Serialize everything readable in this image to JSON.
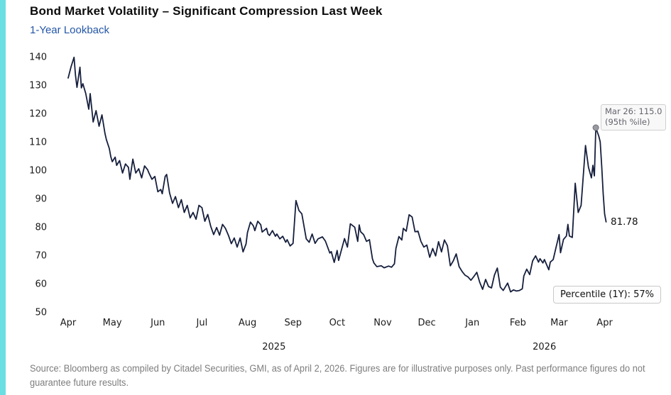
{
  "accent_color": "#6adfe3",
  "header": {
    "title": "Bond Market Volatility – Significant Compression Last Week",
    "subtitle": "1-Year Lookback"
  },
  "footer": {
    "source": "Source: Bloomberg as compiled by Citadel Securities, GMI, as of April 2, 2026. Figures are for illustrative purposes only. Past performance figures do not guarantee future results."
  },
  "chart_data": {
    "type": "line",
    "title": "Bond Market Volatility – Significant Compression Last Week",
    "subtitle": "1-Year Lookback",
    "x_start_date": "2025-04-01",
    "x_end_date": "2026-04-02",
    "x_unit": "days since 2025-04-01",
    "ylim": [
      50,
      140
    ],
    "y_ticks": [
      50,
      60,
      70,
      80,
      90,
      100,
      110,
      120,
      130,
      140
    ],
    "x_ticks": [
      {
        "day": 0,
        "label": "Apr"
      },
      {
        "day": 30,
        "label": "May"
      },
      {
        "day": 61,
        "label": "Jun"
      },
      {
        "day": 91,
        "label": "Jul"
      },
      {
        "day": 122,
        "label": "Aug"
      },
      {
        "day": 153,
        "label": "Sep"
      },
      {
        "day": 183,
        "label": "Oct"
      },
      {
        "day": 214,
        "label": "Nov"
      },
      {
        "day": 244,
        "label": "Dec"
      },
      {
        "day": 275,
        "label": "Jan"
      },
      {
        "day": 306,
        "label": "Feb"
      },
      {
        "day": 334,
        "label": "Mar"
      },
      {
        "day": 365,
        "label": "Apr"
      }
    ],
    "year_labels": [
      {
        "day": 140,
        "label": "2025"
      },
      {
        "day": 324,
        "label": "2026"
      }
    ],
    "grid": false,
    "legend": "none",
    "line_color": "#161f3d",
    "series": [
      {
        "name": "Bond market volatility (1-year lookback)",
        "points": [
          [
            0,
            132.5
          ],
          [
            2,
            136.5
          ],
          [
            4,
            139.8
          ],
          [
            5,
            133.5
          ],
          [
            6,
            129.2
          ],
          [
            8,
            136.3
          ],
          [
            9,
            129.0
          ],
          [
            10,
            130.5
          ],
          [
            12,
            127.0
          ],
          [
            14,
            121.5
          ],
          [
            15,
            127.0
          ],
          [
            17,
            117.0
          ],
          [
            19,
            121.0
          ],
          [
            21,
            115.5
          ],
          [
            23,
            119.5
          ],
          [
            25,
            113.0
          ],
          [
            26,
            110.8
          ],
          [
            28,
            107.6
          ],
          [
            29,
            104.8
          ],
          [
            30,
            103.0
          ],
          [
            32,
            104.6
          ],
          [
            33,
            101.7
          ],
          [
            35,
            103.4
          ],
          [
            37,
            99.0
          ],
          [
            39,
            102.2
          ],
          [
            41,
            101.0
          ],
          [
            42,
            96.8
          ],
          [
            44,
            103.9
          ],
          [
            46,
            99.0
          ],
          [
            48,
            100.5
          ],
          [
            50,
            97.3
          ],
          [
            52,
            101.5
          ],
          [
            54,
            100.2
          ],
          [
            55,
            99.0
          ],
          [
            57,
            96.8
          ],
          [
            59,
            97.8
          ],
          [
            61,
            92.4
          ],
          [
            63,
            93.2
          ],
          [
            64,
            91.7
          ],
          [
            66,
            97.8
          ],
          [
            67,
            98.5
          ],
          [
            69,
            92.0
          ],
          [
            71,
            88.3
          ],
          [
            73,
            90.7
          ],
          [
            75,
            86.8
          ],
          [
            77,
            89.6
          ],
          [
            79,
            85.1
          ],
          [
            81,
            87.6
          ],
          [
            83,
            83.2
          ],
          [
            85,
            85.1
          ],
          [
            87,
            82.7
          ],
          [
            89,
            87.6
          ],
          [
            91,
            86.8
          ],
          [
            93,
            82.0
          ],
          [
            95,
            84.4
          ],
          [
            97,
            80.2
          ],
          [
            99,
            77.3
          ],
          [
            101,
            79.8
          ],
          [
            103,
            77.1
          ],
          [
            105,
            80.9
          ],
          [
            107,
            79.5
          ],
          [
            109,
            77.1
          ],
          [
            111,
            74.1
          ],
          [
            113,
            76.1
          ],
          [
            115,
            72.9
          ],
          [
            117,
            76.1
          ],
          [
            119,
            71.2
          ],
          [
            121,
            74.0
          ],
          [
            122,
            78.0
          ],
          [
            124,
            81.7
          ],
          [
            126,
            80.4
          ],
          [
            127,
            78.7
          ],
          [
            129,
            82.0
          ],
          [
            131,
            80.8
          ],
          [
            132,
            78.2
          ],
          [
            135,
            79.5
          ],
          [
            136,
            77.5
          ],
          [
            137,
            77.0
          ],
          [
            139,
            78.7
          ],
          [
            141,
            76.7
          ],
          [
            142,
            77.5
          ],
          [
            144,
            75.8
          ],
          [
            146,
            76.7
          ],
          [
            148,
            74.6
          ],
          [
            149,
            75.5
          ],
          [
            151,
            73.3
          ],
          [
            153,
            74.2
          ],
          [
            155,
            89.3
          ],
          [
            157,
            85.8
          ],
          [
            159,
            84.6
          ],
          [
            162,
            75.8
          ],
          [
            164,
            74.6
          ],
          [
            166,
            77.5
          ],
          [
            168,
            74.2
          ],
          [
            170,
            75.8
          ],
          [
            173,
            76.5
          ],
          [
            175,
            75.0
          ],
          [
            178,
            70.8
          ],
          [
            179,
            71.3
          ],
          [
            181,
            67.5
          ],
          [
            183,
            71.7
          ],
          [
            184,
            68.2
          ],
          [
            188,
            75.9
          ],
          [
            190,
            72.9
          ],
          [
            192,
            81.1
          ],
          [
            195,
            79.9
          ],
          [
            197,
            74.9
          ],
          [
            198,
            80.7
          ],
          [
            199,
            78.3
          ],
          [
            201,
            77.3
          ],
          [
            203,
            74.9
          ],
          [
            205,
            75.5
          ],
          [
            207,
            68.8
          ],
          [
            208,
            67.3
          ],
          [
            210,
            66.0
          ],
          [
            213,
            66.3
          ],
          [
            215,
            65.6
          ],
          [
            218,
            66.2
          ],
          [
            220,
            65.8
          ],
          [
            222,
            67.0
          ],
          [
            223,
            72.4
          ],
          [
            225,
            76.6
          ],
          [
            227,
            75.4
          ],
          [
            228,
            79.5
          ],
          [
            230,
            78.5
          ],
          [
            231,
            81.5
          ],
          [
            232,
            84.3
          ],
          [
            234,
            83.5
          ],
          [
            236,
            78.3
          ],
          [
            238,
            78.5
          ],
          [
            240,
            74.9
          ],
          [
            242,
            72.9
          ],
          [
            244,
            73.6
          ],
          [
            246,
            69.3
          ],
          [
            248,
            72.4
          ],
          [
            250,
            69.8
          ],
          [
            252,
            74.8
          ],
          [
            254,
            71.2
          ],
          [
            256,
            75.4
          ],
          [
            258,
            73.4
          ],
          [
            260,
            66.3
          ],
          [
            262,
            68.0
          ],
          [
            264,
            70.5
          ],
          [
            266,
            66.0
          ],
          [
            268,
            64.3
          ],
          [
            270,
            63.0
          ],
          [
            272,
            62.4
          ],
          [
            274,
            61.2
          ],
          [
            276,
            62.5
          ],
          [
            278,
            64.0
          ],
          [
            280,
            60.5
          ],
          [
            282,
            58.0
          ],
          [
            284,
            61.5
          ],
          [
            286,
            59.0
          ],
          [
            288,
            58.5
          ],
          [
            290,
            63.0
          ],
          [
            292,
            65.5
          ],
          [
            294,
            58.8
          ],
          [
            296,
            57.6
          ],
          [
            299,
            60.2
          ],
          [
            301,
            57.1
          ],
          [
            303,
            57.8
          ],
          [
            305,
            57.4
          ],
          [
            307,
            57.6
          ],
          [
            309,
            58.2
          ],
          [
            310,
            62.7
          ],
          [
            312,
            65.1
          ],
          [
            314,
            63.2
          ],
          [
            316,
            68.0
          ],
          [
            318,
            69.8
          ],
          [
            320,
            67.6
          ],
          [
            321,
            68.8
          ],
          [
            323,
            67.3
          ],
          [
            324,
            68.5
          ],
          [
            327,
            64.9
          ],
          [
            328,
            67.6
          ],
          [
            330,
            68.5
          ],
          [
            332,
            72.9
          ],
          [
            334,
            77.3
          ],
          [
            335,
            70.9
          ],
          [
            337,
            75.6
          ],
          [
            339,
            76.8
          ],
          [
            340,
            80.9
          ],
          [
            341,
            76.8
          ],
          [
            343,
            76.3
          ],
          [
            345,
            95.4
          ],
          [
            347,
            85.1
          ],
          [
            349,
            87.6
          ],
          [
            352,
            108.7
          ],
          [
            354,
            101.0
          ],
          [
            356,
            97.3
          ],
          [
            357,
            101.7
          ],
          [
            358,
            98.0
          ],
          [
            359,
            114.98
          ],
          [
            361,
            112.0
          ],
          [
            362,
            110.0
          ],
          [
            363,
            101.5
          ],
          [
            364,
            91.7
          ],
          [
            365,
            84.6
          ],
          [
            366,
            81.78
          ]
        ]
      }
    ],
    "annotations": {
      "peak": {
        "date": "2026-03-26",
        "day": 359,
        "value": 115.0,
        "line1": "Mar 26: 115.0",
        "line2": "(95th %ile)",
        "marker": "gray-dot"
      },
      "last_value_label": "81.78",
      "percentile_box": "Percentile (1Y): 57%"
    }
  }
}
